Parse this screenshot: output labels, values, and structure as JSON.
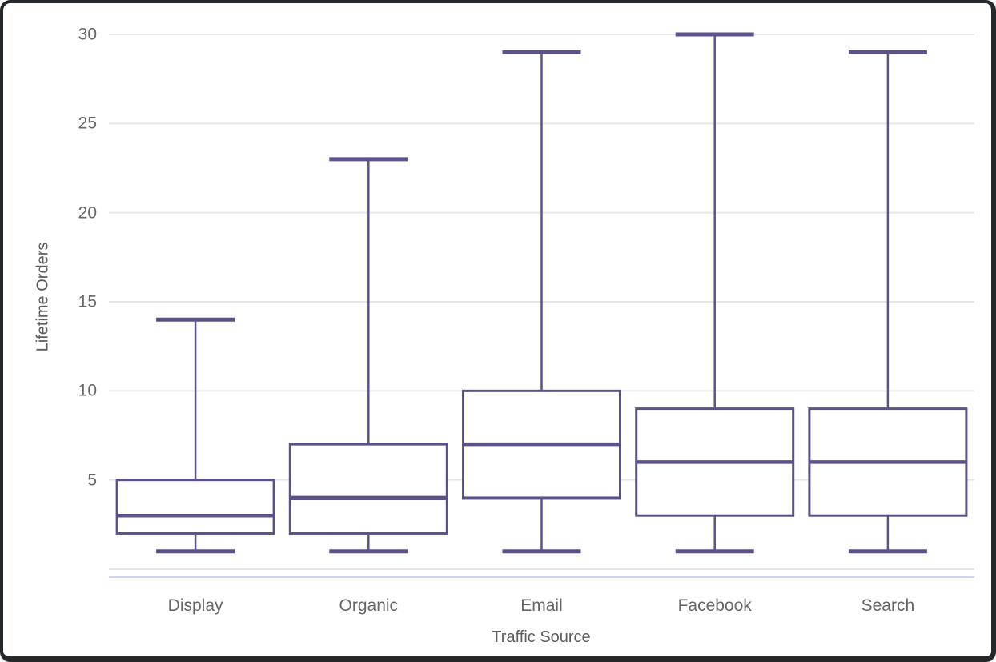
{
  "chart_data": {
    "type": "boxplot",
    "title": "",
    "xlabel": "Traffic Source",
    "ylabel": "Lifetime Orders",
    "categories": [
      "Display",
      "Organic",
      "Email",
      "Facebook",
      "Search"
    ],
    "yticks": [
      5,
      10,
      15,
      20,
      25,
      30
    ],
    "ylim": [
      0,
      30.5
    ],
    "grid": true,
    "legend": "none",
    "series": [
      {
        "name": "Display",
        "min": 1,
        "q1": 2,
        "median": 3,
        "q3": 5,
        "max": 14
      },
      {
        "name": "Organic",
        "min": 1,
        "q1": 2,
        "median": 4,
        "q3": 7,
        "max": 23
      },
      {
        "name": "Email",
        "min": 1,
        "q1": 4,
        "median": 7,
        "q3": 10,
        "max": 29
      },
      {
        "name": "Facebook",
        "min": 1,
        "q1": 3,
        "median": 6,
        "q3": 9,
        "max": 30
      },
      {
        "name": "Search",
        "min": 1,
        "q1": 3,
        "median": 6,
        "q3": 9,
        "max": 29
      }
    ],
    "colors": {
      "box_stroke": "#5e518a",
      "box_fill": "#ffffff",
      "grid_line": "#e6e6e6",
      "axis_line": "#ccd6eb",
      "tick_text": "#666666",
      "axis_title_text": "#5e5e5e",
      "frame_border": "#24282a",
      "background": "#ffffff"
    }
  }
}
